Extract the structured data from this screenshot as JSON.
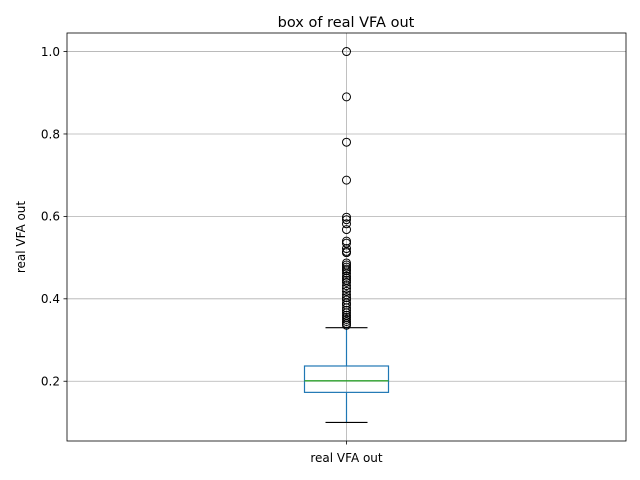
{
  "chart_data": {
    "type": "box",
    "title": "box of real VFA out",
    "xlabel": "",
    "ylabel": "real VFA out",
    "categories": [
      "real VFA out"
    ],
    "yticks": [
      "0.2",
      "0.4",
      "0.6",
      "0.8",
      "1.0"
    ],
    "ylim": [
      0.055,
      1.045
    ],
    "grid": true,
    "series": [
      {
        "name": "real VFA out",
        "whisker_low": 0.1,
        "q1": 0.173,
        "median": 0.201,
        "q3": 0.237,
        "whisker_high": 0.33,
        "outliers": [
          1.0,
          0.89,
          0.78,
          0.688,
          0.598,
          0.592,
          0.582,
          0.568,
          0.54,
          0.535,
          0.522,
          0.515,
          0.512,
          0.487,
          0.482,
          0.477,
          0.472,
          0.468,
          0.462,
          0.455,
          0.45,
          0.445,
          0.44,
          0.432,
          0.425,
          0.418,
          0.41,
          0.403,
          0.397,
          0.39,
          0.385,
          0.378,
          0.372,
          0.366,
          0.36,
          0.355,
          0.35,
          0.345,
          0.34,
          0.336
        ]
      }
    ],
    "colors": {
      "box": "#1f77b4",
      "median": "#2ca02c",
      "whisker_cap": "#000000",
      "grid": "#b0b0b0",
      "outlier_edge": "#000000"
    }
  }
}
